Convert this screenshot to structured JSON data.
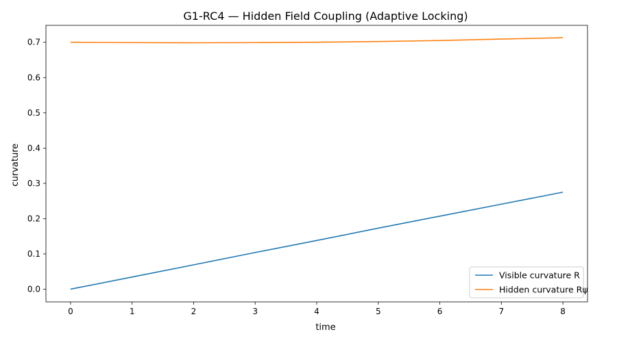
{
  "chart_data": {
    "type": "line",
    "title": "G1-RC4 — Hidden Field Coupling (Adaptive Locking)",
    "xlabel": "time",
    "ylabel": "curvature",
    "xlim": [
      -0.4,
      8.4
    ],
    "ylim": [
      -0.036,
      0.748
    ],
    "xticks": [
      0,
      1,
      2,
      3,
      4,
      5,
      6,
      7,
      8
    ],
    "yticks": [
      0.0,
      0.1,
      0.2,
      0.3,
      0.4,
      0.5,
      0.6,
      0.7
    ],
    "ytick_labels": [
      "0.0",
      "0.1",
      "0.2",
      "0.3",
      "0.4",
      "0.5",
      "0.6",
      "0.7"
    ],
    "grid": false,
    "legend_position": "lower-right",
    "series": [
      {
        "name": "Visible curvature R",
        "color": "#1f77b4",
        "x": [
          0,
          1,
          2,
          3,
          4,
          5,
          6,
          7,
          8
        ],
        "y": [
          0.0,
          0.0345,
          0.069,
          0.104,
          0.138,
          0.173,
          0.207,
          0.241,
          0.275
        ]
      },
      {
        "name": "Hidden curvature Rψ",
        "color": "#ff7f0e",
        "x": [
          0,
          1,
          2,
          3,
          4,
          5,
          6,
          7,
          8
        ],
        "y": [
          0.7,
          0.699,
          0.6985,
          0.699,
          0.7,
          0.702,
          0.705,
          0.709,
          0.713
        ]
      }
    ]
  }
}
